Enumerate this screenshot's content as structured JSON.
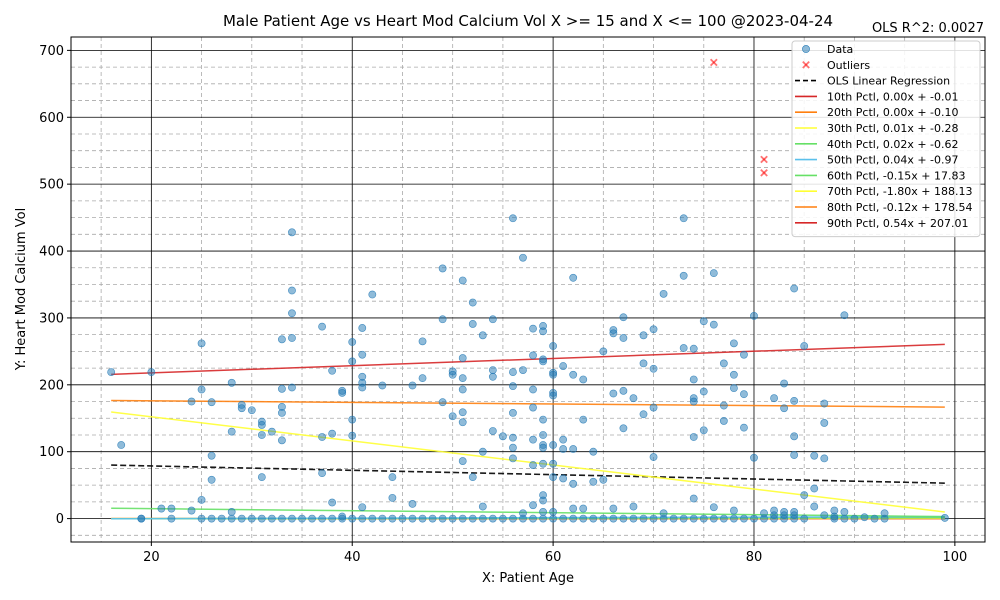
{
  "chart_data": {
    "type": "scatter",
    "title": "Male Patient Age vs Heart Mod Calcium Vol X >= 15 and X <=  100 @2023-04-24",
    "annotation": "OLS R^2: 0.0027",
    "xlabel": "X: Patient Age",
    "ylabel": "Y: Heart Mod Calcium Vol",
    "xlim": [
      12,
      103
    ],
    "ylim": [
      -35,
      720
    ],
    "x_ticks": [
      20,
      40,
      60,
      80,
      100
    ],
    "y_ticks": [
      0,
      100,
      200,
      300,
      400,
      500,
      600,
      700
    ],
    "grid": true,
    "legend_position": "upper right",
    "colors": {
      "data": "#1f77b4",
      "outliers": "#ff0000",
      "ols": "#000000"
    },
    "series": [
      {
        "name": "Data",
        "kind": "scatter",
        "points": [
          [
            16,
            219
          ],
          [
            17,
            110
          ],
          [
            19,
            0
          ],
          [
            19,
            0
          ],
          [
            20,
            219
          ],
          [
            21,
            15
          ],
          [
            22,
            15
          ],
          [
            22,
            0
          ],
          [
            24,
            175
          ],
          [
            24,
            12
          ],
          [
            25,
            262
          ],
          [
            25,
            193
          ],
          [
            25,
            28
          ],
          [
            25,
            0
          ],
          [
            26,
            174
          ],
          [
            26,
            94
          ],
          [
            26,
            58
          ],
          [
            26,
            0
          ],
          [
            27,
            0
          ],
          [
            28,
            203
          ],
          [
            28,
            130
          ],
          [
            28,
            10
          ],
          [
            28,
            0
          ],
          [
            29,
            170
          ],
          [
            29,
            165
          ],
          [
            29,
            0
          ],
          [
            30,
            162
          ],
          [
            30,
            0
          ],
          [
            31,
            145
          ],
          [
            31,
            140
          ],
          [
            31,
            125
          ],
          [
            31,
            62
          ],
          [
            31,
            0
          ],
          [
            32,
            130
          ],
          [
            32,
            0
          ],
          [
            33,
            268
          ],
          [
            33,
            194
          ],
          [
            33,
            167
          ],
          [
            33,
            158
          ],
          [
            33,
            117
          ],
          [
            33,
            0
          ],
          [
            34,
            428
          ],
          [
            34,
            341
          ],
          [
            34,
            307
          ],
          [
            34,
            270
          ],
          [
            34,
            196
          ],
          [
            34,
            0
          ],
          [
            35,
            0
          ],
          [
            36,
            0
          ],
          [
            37,
            287
          ],
          [
            37,
            122
          ],
          [
            37,
            68
          ],
          [
            37,
            0
          ],
          [
            38,
            221
          ],
          [
            38,
            127
          ],
          [
            38,
            24
          ],
          [
            38,
            0
          ],
          [
            39,
            191
          ],
          [
            39,
            188
          ],
          [
            39,
            3
          ],
          [
            39,
            0
          ],
          [
            40,
            264
          ],
          [
            40,
            235
          ],
          [
            40,
            148
          ],
          [
            40,
            124
          ],
          [
            40,
            0
          ],
          [
            41,
            285
          ],
          [
            41,
            245
          ],
          [
            41,
            212
          ],
          [
            41,
            203
          ],
          [
            41,
            196
          ],
          [
            41,
            17
          ],
          [
            41,
            0
          ],
          [
            42,
            335
          ],
          [
            42,
            0
          ],
          [
            43,
            199
          ],
          [
            43,
            0
          ],
          [
            44,
            62
          ],
          [
            44,
            31
          ],
          [
            44,
            0
          ],
          [
            45,
            0
          ],
          [
            46,
            199
          ],
          [
            46,
            22
          ],
          [
            46,
            0
          ],
          [
            47,
            265
          ],
          [
            47,
            210
          ],
          [
            47,
            0
          ],
          [
            48,
            0
          ],
          [
            49,
            374
          ],
          [
            49,
            298
          ],
          [
            49,
            174
          ],
          [
            49,
            0
          ],
          [
            50,
            220
          ],
          [
            50,
            215
          ],
          [
            50,
            153
          ],
          [
            50,
            0
          ],
          [
            51,
            356
          ],
          [
            51,
            240
          ],
          [
            51,
            210
          ],
          [
            51,
            193
          ],
          [
            51,
            159
          ],
          [
            51,
            144
          ],
          [
            51,
            86
          ],
          [
            51,
            0
          ],
          [
            52,
            323
          ],
          [
            52,
            291
          ],
          [
            52,
            62
          ],
          [
            52,
            0
          ],
          [
            53,
            274
          ],
          [
            53,
            100
          ],
          [
            53,
            18
          ],
          [
            53,
            0
          ],
          [
            54,
            298
          ],
          [
            54,
            222
          ],
          [
            54,
            212
          ],
          [
            54,
            131
          ],
          [
            54,
            0
          ],
          [
            55,
            123
          ],
          [
            55,
            0
          ],
          [
            56,
            449
          ],
          [
            56,
            219
          ],
          [
            56,
            198
          ],
          [
            56,
            158
          ],
          [
            56,
            121
          ],
          [
            56,
            106
          ],
          [
            56,
            90
          ],
          [
            56,
            0
          ],
          [
            57,
            390
          ],
          [
            57,
            222
          ],
          [
            57,
            8
          ],
          [
            57,
            0
          ],
          [
            58,
            284
          ],
          [
            58,
            244
          ],
          [
            58,
            193
          ],
          [
            58,
            166
          ],
          [
            58,
            118
          ],
          [
            58,
            80
          ],
          [
            58,
            20
          ],
          [
            58,
            0
          ],
          [
            59,
            288
          ],
          [
            59,
            280
          ],
          [
            59,
            238
          ],
          [
            59,
            235
          ],
          [
            59,
            148
          ],
          [
            59,
            125
          ],
          [
            59,
            110
          ],
          [
            59,
            106
          ],
          [
            59,
            82
          ],
          [
            59,
            35
          ],
          [
            59,
            27
          ],
          [
            59,
            10
          ],
          [
            59,
            0
          ],
          [
            60,
            258
          ],
          [
            60,
            218
          ],
          [
            60,
            215
          ],
          [
            60,
            188
          ],
          [
            60,
            184
          ],
          [
            60,
            110
          ],
          [
            60,
            82
          ],
          [
            60,
            62
          ],
          [
            60,
            10
          ],
          [
            60,
            0
          ],
          [
            61,
            228
          ],
          [
            61,
            118
          ],
          [
            61,
            104
          ],
          [
            61,
            60
          ],
          [
            61,
            0
          ],
          [
            62,
            360
          ],
          [
            62,
            215
          ],
          [
            62,
            104
          ],
          [
            62,
            52
          ],
          [
            62,
            15
          ],
          [
            62,
            0
          ],
          [
            63,
            208
          ],
          [
            63,
            148
          ],
          [
            63,
            15
          ],
          [
            63,
            0
          ],
          [
            64,
            100
          ],
          [
            64,
            55
          ],
          [
            64,
            0
          ],
          [
            65,
            250
          ],
          [
            65,
            58
          ],
          [
            65,
            0
          ],
          [
            66,
            282
          ],
          [
            66,
            277
          ],
          [
            66,
            187
          ],
          [
            66,
            15
          ],
          [
            66,
            0
          ],
          [
            67,
            301
          ],
          [
            67,
            270
          ],
          [
            67,
            191
          ],
          [
            67,
            135
          ],
          [
            67,
            0
          ],
          [
            68,
            180
          ],
          [
            68,
            18
          ],
          [
            68,
            0
          ],
          [
            69,
            274
          ],
          [
            69,
            232
          ],
          [
            69,
            156
          ],
          [
            69,
            0
          ],
          [
            70,
            283
          ],
          [
            70,
            224
          ],
          [
            70,
            166
          ],
          [
            70,
            92
          ],
          [
            70,
            0
          ],
          [
            71,
            336
          ],
          [
            71,
            8
          ],
          [
            71,
            0
          ],
          [
            72,
            0
          ],
          [
            73,
            449
          ],
          [
            73,
            363
          ],
          [
            73,
            255
          ],
          [
            73,
            0
          ],
          [
            74,
            254
          ],
          [
            74,
            208
          ],
          [
            74,
            180
          ],
          [
            74,
            175
          ],
          [
            74,
            122
          ],
          [
            74,
            30
          ],
          [
            74,
            0
          ],
          [
            75,
            295
          ],
          [
            75,
            190
          ],
          [
            75,
            132
          ],
          [
            75,
            0
          ],
          [
            76,
            367
          ],
          [
            76,
            290
          ],
          [
            76,
            17
          ],
          [
            76,
            0
          ],
          [
            77,
            232
          ],
          [
            77,
            169
          ],
          [
            77,
            146
          ],
          [
            77,
            0
          ],
          [
            78,
            262
          ],
          [
            78,
            215
          ],
          [
            78,
            195
          ],
          [
            78,
            12
          ],
          [
            78,
            0
          ],
          [
            79,
            245
          ],
          [
            79,
            186
          ],
          [
            79,
            136
          ],
          [
            79,
            0
          ],
          [
            80,
            303
          ],
          [
            80,
            91
          ],
          [
            80,
            0
          ],
          [
            81,
            8
          ],
          [
            81,
            0
          ],
          [
            82,
            180
          ],
          [
            82,
            12
          ],
          [
            82,
            5
          ],
          [
            82,
            0
          ],
          [
            83,
            202
          ],
          [
            83,
            165
          ],
          [
            83,
            10
          ],
          [
            83,
            5
          ],
          [
            83,
            0
          ],
          [
            84,
            344
          ],
          [
            84,
            176
          ],
          [
            84,
            123
          ],
          [
            84,
            95
          ],
          [
            84,
            10
          ],
          [
            84,
            5
          ],
          [
            84,
            0
          ],
          [
            85,
            258
          ],
          [
            85,
            35
          ],
          [
            85,
            0
          ],
          [
            86,
            94
          ],
          [
            86,
            45
          ],
          [
            86,
            18
          ],
          [
            87,
            172
          ],
          [
            87,
            143
          ],
          [
            87,
            90
          ],
          [
            87,
            5
          ],
          [
            88,
            12
          ],
          [
            88,
            3
          ],
          [
            88,
            0
          ],
          [
            89,
            304
          ],
          [
            89,
            10
          ],
          [
            89,
            0
          ],
          [
            90,
            0
          ],
          [
            91,
            2
          ],
          [
            92,
            0
          ],
          [
            93,
            8
          ],
          [
            93,
            0
          ],
          [
            99,
            1
          ]
        ]
      },
      {
        "name": "Outliers",
        "kind": "outlier",
        "points": [
          [
            76,
            682
          ],
          [
            81,
            537
          ],
          [
            81,
            517
          ]
        ]
      },
      {
        "name": "OLS Linear Regression",
        "kind": "line",
        "dash": true,
        "color": "#000000",
        "x": [
          16,
          99
        ],
        "y": [
          80,
          53
        ]
      },
      {
        "name": "10th Pctl, 0.00x + -0.01",
        "kind": "line",
        "color": "#d62728",
        "x": [
          16,
          99
        ],
        "y": [
          -0.01,
          -0.01
        ]
      },
      {
        "name": "20th Pctl, 0.00x + -0.10",
        "kind": "line",
        "color": "#ff7f0e",
        "x": [
          16,
          99
        ],
        "y": [
          -0.1,
          -0.1
        ]
      },
      {
        "name": "30th Pctl, 0.01x + -0.28",
        "kind": "line",
        "color": "#ffff33",
        "x": [
          16,
          99
        ],
        "y": [
          -0.12,
          0.71
        ]
      },
      {
        "name": "40th Pctl, 0.02x + -0.62",
        "kind": "line",
        "color": "#66e066",
        "x": [
          16,
          99
        ],
        "y": [
          -0.3,
          1.36
        ]
      },
      {
        "name": "50th Pctl, 0.04x + -0.97",
        "kind": "line",
        "color": "#5bc0eb",
        "x": [
          16,
          99
        ],
        "y": [
          -0.33,
          2.99
        ]
      },
      {
        "name": "60th Pctl, -0.15x + 17.83",
        "kind": "line",
        "color": "#66e066",
        "x": [
          16,
          99
        ],
        "y": [
          15.43,
          2.98
        ]
      },
      {
        "name": "70th Pctl, -1.80x + 188.13",
        "kind": "line",
        "color": "#ffff33",
        "x": [
          16,
          99
        ],
        "y": [
          159.33,
          9.93
        ]
      },
      {
        "name": "80th Pctl, -0.12x + 178.54",
        "kind": "line",
        "color": "#ff7f0e",
        "x": [
          16,
          99
        ],
        "y": [
          176.62,
          166.66
        ]
      },
      {
        "name": "90th Pctl, 0.54x + 207.01",
        "kind": "line",
        "color": "#d62728",
        "x": [
          16,
          99
        ],
        "y": [
          215.65,
          260.47
        ]
      }
    ]
  }
}
